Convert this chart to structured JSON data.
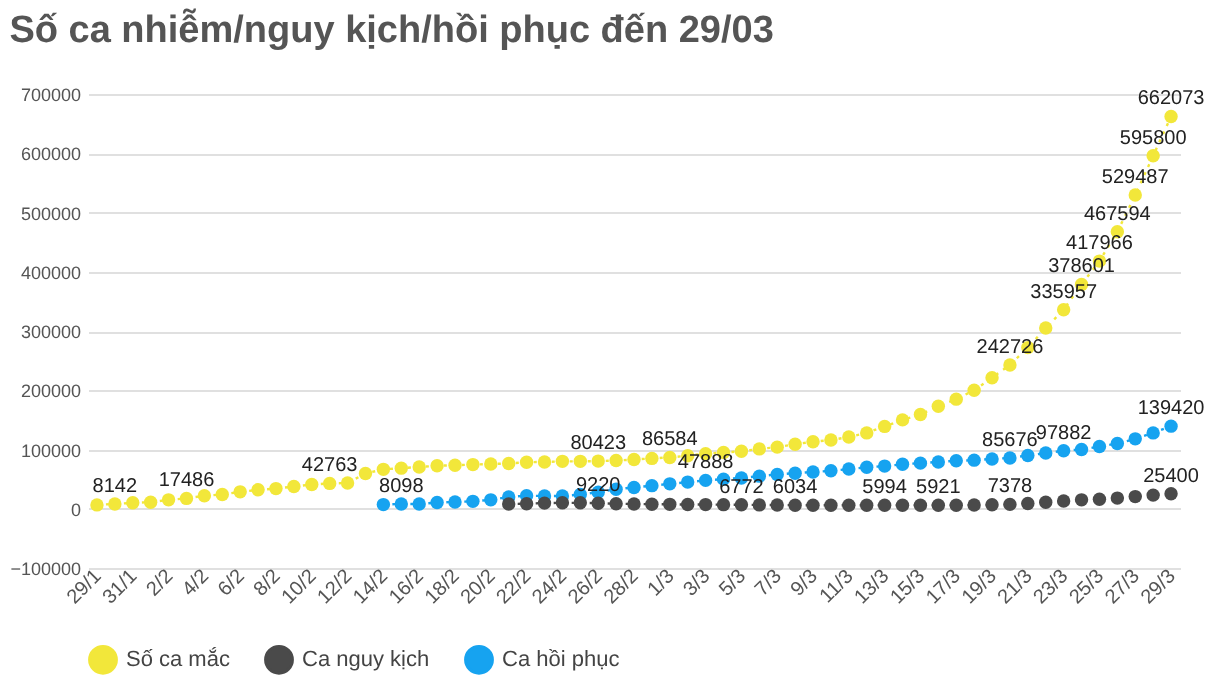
{
  "chart_data": {
    "type": "line",
    "title": "Số ca nhiễm/nguy kịch/hồi phục đến 29/03",
    "categories": [
      "29/1",
      null,
      "31/1",
      null,
      "2/2",
      null,
      "4/2",
      null,
      "6/2",
      null,
      "8/2",
      null,
      "10/2",
      null,
      "12/2",
      null,
      "14/2",
      null,
      "16/2",
      null,
      "18/2",
      null,
      "20/2",
      null,
      "22/2",
      null,
      "24/2",
      null,
      "26/2",
      null,
      "28/2",
      null,
      "1/3",
      null,
      "3/3",
      null,
      "5/3",
      null,
      "7/3",
      null,
      "9/3",
      null,
      "11/3",
      null,
      "13/3",
      null,
      "15/3",
      null,
      "17/3",
      null,
      "19/3",
      null,
      "21/3",
      null,
      "23/3",
      null,
      "25/3",
      null,
      "27/3",
      null,
      "29/3"
    ],
    "series": [
      {
        "name": "Số ca mắc",
        "color": "#f2e73a",
        "values": [
          6500,
          8142,
          10000,
          11000,
          15000,
          17486,
          22000,
          24000,
          28500,
          32000,
          34000,
          37500,
          41000,
          42763,
          43500,
          59500,
          66500,
          68500,
          70500,
          72500,
          73500,
          74500,
          75500,
          76500,
          78500,
          79000,
          80000,
          80000,
          80423,
          81500,
          83000,
          85000,
          86584,
          89500,
          93000,
          95000,
          97000,
          101000,
          104000,
          109000,
          113000,
          116000,
          121000,
          128000,
          139000,
          150000,
          159000,
          173000,
          185000,
          200000,
          221000,
          242726,
          272000,
          305000,
          335957,
          378601,
          417966,
          467594,
          529487,
          595800,
          662073
        ],
        "value_labels": [
          null,
          "8142",
          null,
          null,
          null,
          "17486",
          null,
          null,
          null,
          null,
          null,
          null,
          null,
          "42763",
          null,
          null,
          null,
          null,
          null,
          null,
          null,
          null,
          null,
          null,
          null,
          null,
          null,
          null,
          "80423",
          null,
          null,
          null,
          "86584",
          null,
          null,
          null,
          null,
          null,
          null,
          null,
          null,
          null,
          null,
          null,
          null,
          null,
          null,
          null,
          null,
          null,
          null,
          "242726",
          null,
          null,
          "335957",
          "378601",
          "417966",
          "467594",
          "529487",
          "595800",
          "662073"
        ]
      },
      {
        "name": "Ca nguy kịch",
        "color": "#4a4a4a",
        "values": [
          null,
          null,
          null,
          null,
          null,
          null,
          null,
          null,
          null,
          null,
          null,
          null,
          null,
          null,
          null,
          null,
          null,
          null,
          null,
          null,
          null,
          null,
          null,
          8000,
          8500,
          9500,
          10000,
          10000,
          9220,
          8500,
          8000,
          7700,
          7400,
          7200,
          7000,
          6900,
          6772,
          6500,
          6300,
          6034,
          6000,
          6000,
          6000,
          6000,
          5994,
          6000,
          6000,
          5921,
          6000,
          6300,
          6800,
          7378,
          9000,
          11000,
          13000,
          15000,
          16000,
          18000,
          20500,
          23000,
          25400
        ],
        "value_labels": [
          null,
          null,
          null,
          null,
          null,
          null,
          null,
          null,
          null,
          null,
          null,
          null,
          null,
          null,
          null,
          null,
          null,
          null,
          null,
          null,
          null,
          null,
          null,
          null,
          null,
          null,
          null,
          null,
          "9220",
          null,
          null,
          null,
          null,
          null,
          null,
          null,
          "6772",
          null,
          null,
          "6034",
          null,
          null,
          null,
          null,
          "5994",
          null,
          null,
          "5921",
          null,
          null,
          null,
          "7378",
          null,
          null,
          null,
          null,
          null,
          null,
          null,
          null,
          "25400"
        ]
      },
      {
        "name": "Ca hồi phục",
        "color": "#16a3f0",
        "values": [
          null,
          null,
          null,
          null,
          null,
          null,
          null,
          null,
          null,
          null,
          null,
          null,
          null,
          null,
          null,
          null,
          7000,
          8098,
          8000,
          10500,
          11500,
          12500,
          15000,
          20000,
          22000,
          21500,
          21500,
          24000,
          28000,
          33000,
          36000,
          39000,
          42000,
          45000,
          47888,
          50000,
          52000,
          55000,
          58000,
          60000,
          62000,
          64000,
          67000,
          70000,
          72000,
          75000,
          77000,
          79000,
          81000,
          82000,
          84000,
          85676,
          90000,
          94000,
          97882,
          100000,
          105000,
          110000,
          118000,
          128000,
          139420
        ],
        "value_labels": [
          null,
          null,
          null,
          null,
          null,
          null,
          null,
          null,
          null,
          null,
          null,
          null,
          null,
          null,
          null,
          null,
          null,
          "8098",
          null,
          null,
          null,
          null,
          null,
          null,
          null,
          null,
          null,
          null,
          null,
          null,
          null,
          null,
          null,
          null,
          "47888",
          null,
          null,
          null,
          null,
          null,
          null,
          null,
          null,
          null,
          null,
          null,
          null,
          null,
          null,
          null,
          null,
          "85676",
          null,
          null,
          "97882",
          null,
          null,
          null,
          null,
          null,
          "139420"
        ]
      }
    ],
    "ylim": [
      -100000,
      700000
    ],
    "yticks": [
      -100000,
      0,
      100000,
      200000,
      300000,
      400000,
      500000,
      600000,
      700000
    ],
    "grid": "y",
    "legend": "bottom",
    "marker": "circle",
    "line_style": "dotted"
  }
}
